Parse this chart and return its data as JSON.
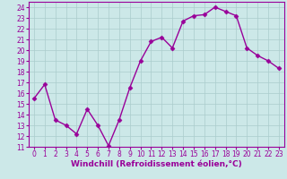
{
  "x": [
    0,
    1,
    2,
    3,
    4,
    5,
    6,
    7,
    8,
    9,
    10,
    11,
    12,
    13,
    14,
    15,
    16,
    17,
    18,
    19,
    20,
    21,
    22,
    23
  ],
  "y": [
    15.5,
    16.8,
    13.5,
    13.0,
    12.2,
    14.5,
    13.0,
    11.1,
    13.5,
    16.5,
    19.0,
    20.8,
    21.2,
    20.2,
    22.7,
    23.2,
    23.3,
    24.0,
    23.6,
    23.2,
    20.2,
    19.5,
    19.0,
    18.3
  ],
  "line_color": "#990099",
  "marker": "D",
  "marker_size": 2.5,
  "bg_color": "#cce8e8",
  "grid_color": "#aacccc",
  "xlabel": "Windchill (Refroidissement éolien,°C)",
  "ylim": [
    11,
    24.5
  ],
  "yticks": [
    11,
    12,
    13,
    14,
    15,
    16,
    17,
    18,
    19,
    20,
    21,
    22,
    23,
    24
  ],
  "xticks": [
    0,
    1,
    2,
    3,
    4,
    5,
    6,
    7,
    8,
    9,
    10,
    11,
    12,
    13,
    14,
    15,
    16,
    17,
    18,
    19,
    20,
    21,
    22,
    23
  ],
  "tick_fontsize": 5.5,
  "xlabel_fontsize": 6.5,
  "linewidth": 1.0
}
